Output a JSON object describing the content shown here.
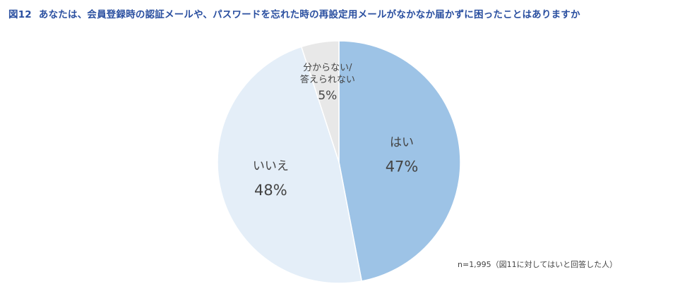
{
  "title": {
    "figure": "図12",
    "text": "あなたは、会員登録時の認証メールや、パスワードを忘れた時の再設定用メールがなかなか届かずに困ったことはありますか"
  },
  "note": "n=1,995（図11に対してはいと回答した人）",
  "chart_data": {
    "type": "pie",
    "start": "12 o'clock",
    "direction": "clockwise",
    "slices": [
      {
        "label": "はい",
        "value": 47,
        "value_label": "47%",
        "color": "#9dc3e6"
      },
      {
        "label": "いいえ",
        "value": 48,
        "value_label": "48%",
        "color": "#e4eef8"
      },
      {
        "label_lines": [
          "分からない/",
          "答えられない"
        ],
        "value": 5,
        "value_label": "5%",
        "color": "#e8e8e8"
      }
    ],
    "legend": "none"
  }
}
